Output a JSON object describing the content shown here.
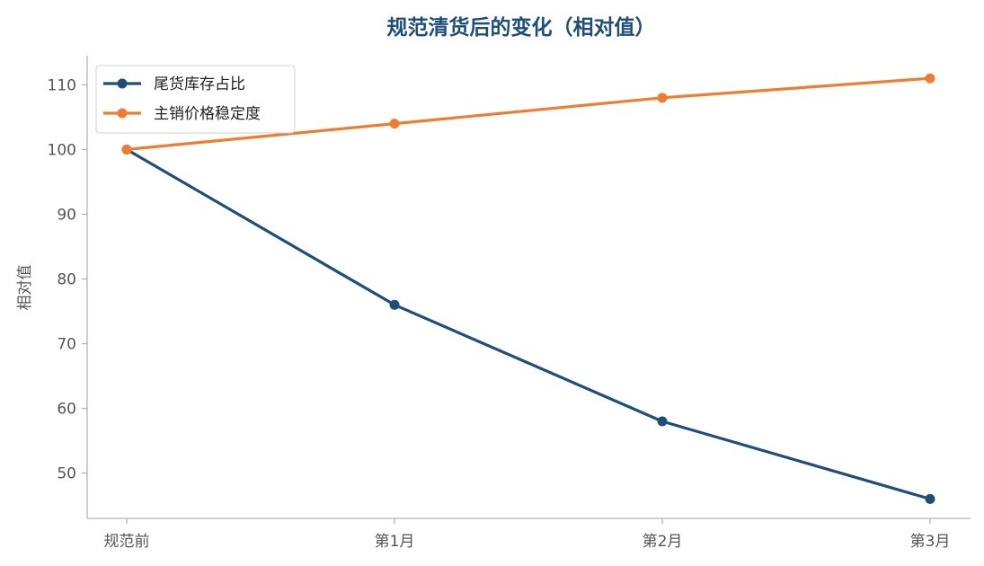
{
  "chart_data": {
    "type": "line",
    "title": "规范清货后的变化（相对值）",
    "xlabel": "",
    "ylabel": "相对值",
    "categories": [
      "规范前",
      "第1月",
      "第2月",
      "第3月"
    ],
    "ylim": [
      43,
      114.5
    ],
    "yticks": [
      50,
      60,
      70,
      80,
      90,
      100,
      110
    ],
    "grid": false,
    "legend_position": "top-left",
    "series": [
      {
        "name": "尾货库存占比",
        "values": [
          100,
          76,
          58,
          46
        ],
        "color": "#1f4e79"
      },
      {
        "name": "主销价格稳定度",
        "values": [
          100,
          104,
          108,
          111
        ],
        "color": "#ed7d31"
      }
    ]
  }
}
